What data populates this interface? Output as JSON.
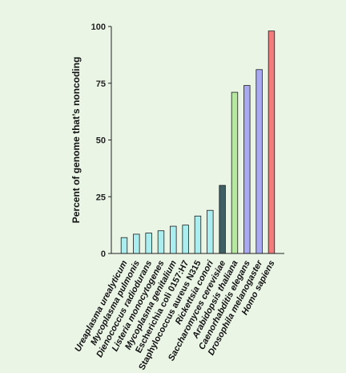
{
  "chart_data": {
    "type": "bar",
    "title": "",
    "xlabel": "",
    "ylabel": "Percent of genome that’s noncoding",
    "ylim": [
      0,
      100
    ],
    "yticks": [
      0,
      25,
      50,
      75,
      100
    ],
    "grid": false,
    "legend": "none",
    "categories": [
      "Ureaplasma urealyticum",
      "Mycoplasma pulmonis",
      "Dienococcus radiodurans",
      "Listeria monocytogenes",
      "Mycoplasma genitalium",
      "Escherichia coli 0157:H7",
      "Staphylococcus aureus N315",
      "Rickettsia conori",
      "Saccharomyces cerevisiae",
      "Arabidopsis thaliana",
      "Caenorhabditis elegans",
      "Drosophila melanogaster",
      "Homo sapiens"
    ],
    "values": [
      7,
      8.5,
      9,
      10,
      12,
      12.5,
      16.5,
      19,
      30,
      71,
      74,
      81,
      98
    ],
    "colors": [
      "#aaeef0",
      "#aaeef0",
      "#aaeef0",
      "#aaeef0",
      "#aaeef0",
      "#aaeef0",
      "#aaeef0",
      "#aaeef0",
      "#3e5f63",
      "#b6e8a0",
      "#a9a9f2",
      "#a9a9f2",
      "#f27c7c"
    ]
  }
}
